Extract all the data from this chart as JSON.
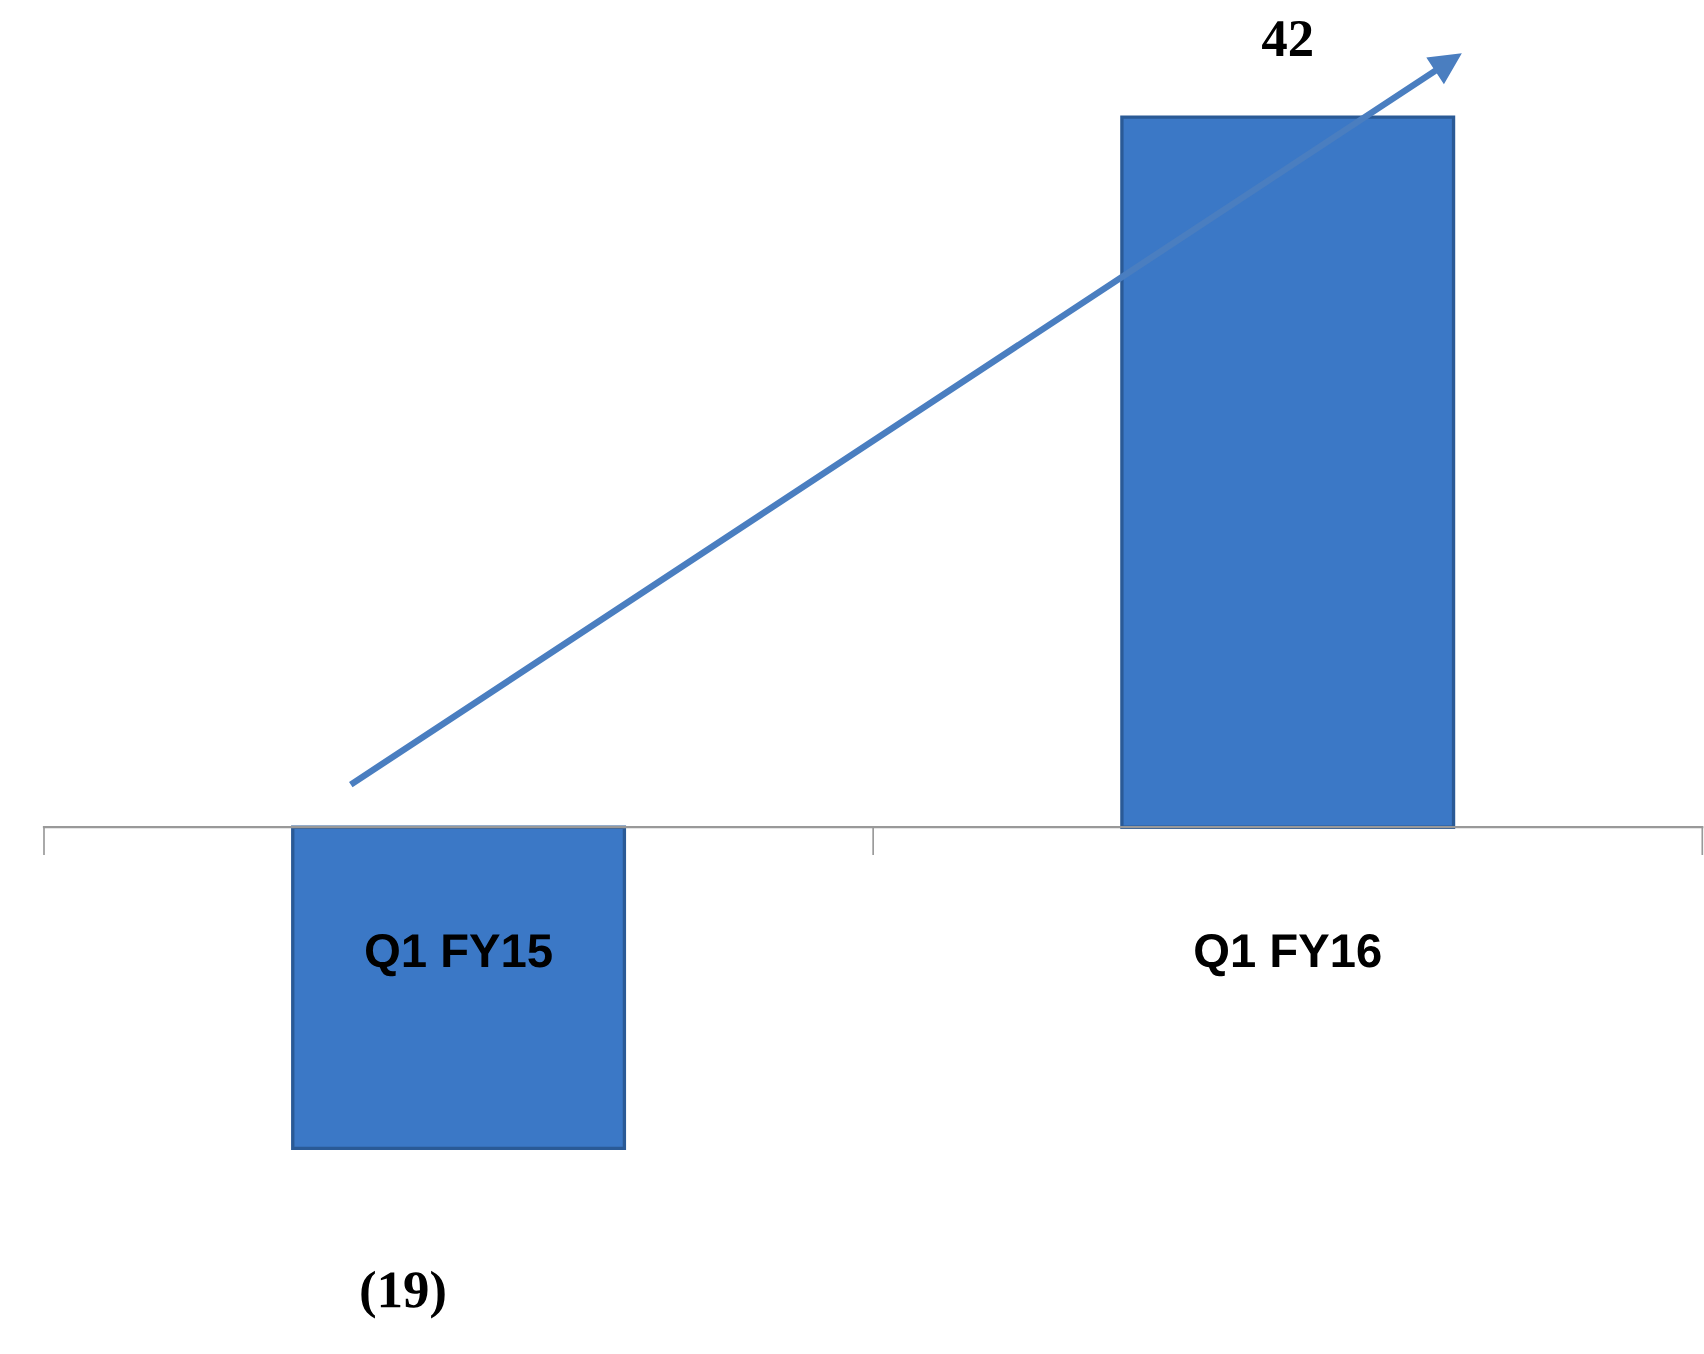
{
  "chart_data": {
    "type": "bar",
    "categories": [
      "Q1 FY15",
      "Q1 FY16"
    ],
    "values": [
      -19,
      42
    ],
    "value_labels": [
      "(19)",
      "42"
    ],
    "color": "#3b78c6",
    "grid": false,
    "legend": false
  }
}
